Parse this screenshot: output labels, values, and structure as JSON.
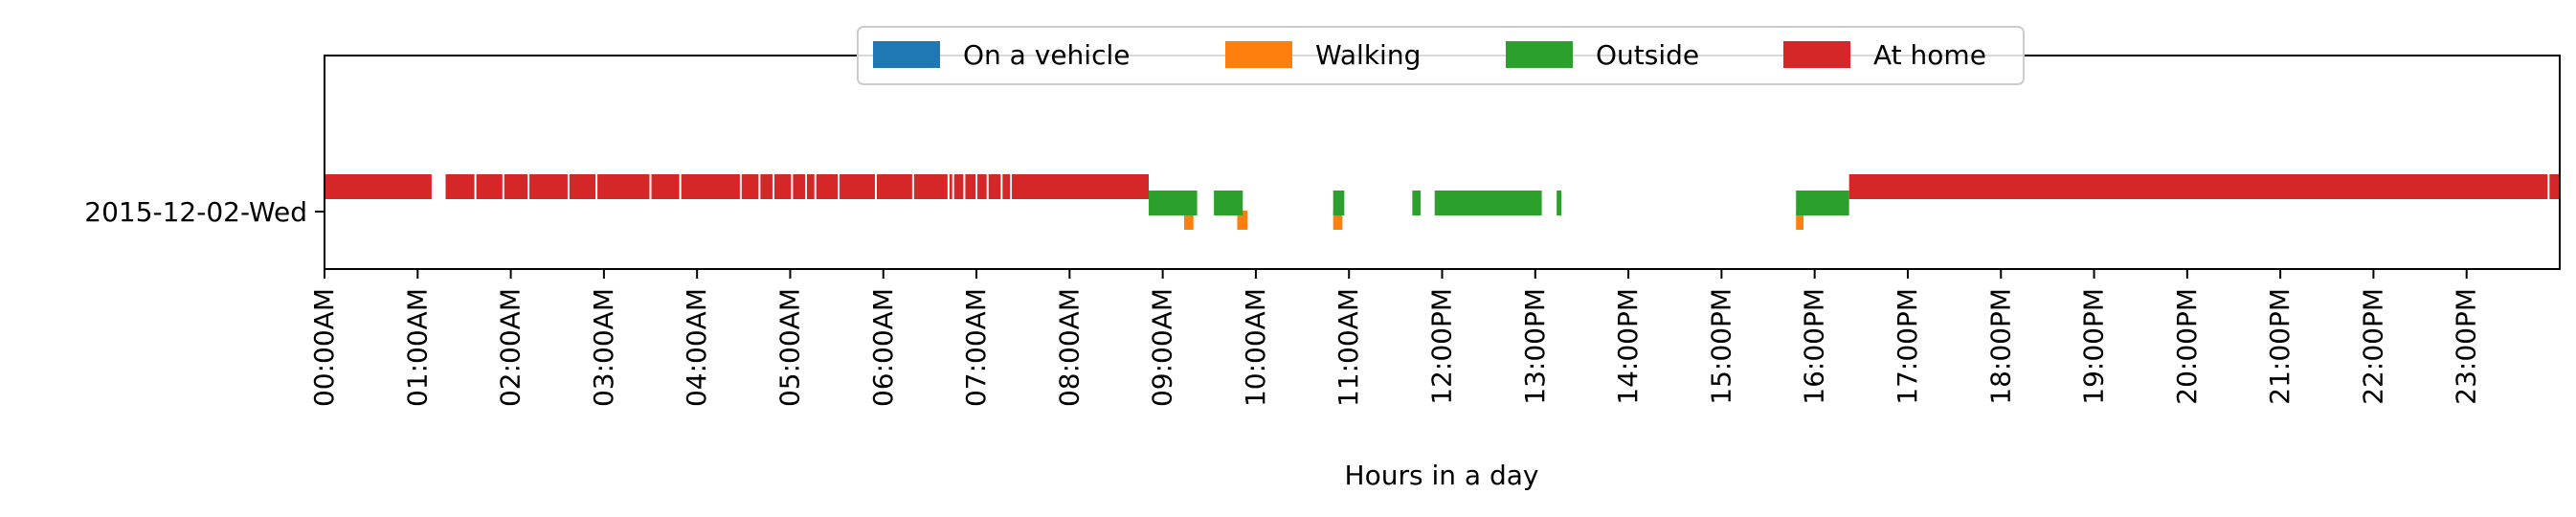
{
  "chart_data": {
    "type": "timeline",
    "title": "",
    "xlabel": "Hours in a day",
    "ylabel": "",
    "xlim": [
      0,
      24
    ],
    "x_ticks": [
      0,
      1,
      2,
      3,
      4,
      5,
      6,
      7,
      8,
      9,
      10,
      11,
      12,
      13,
      14,
      15,
      16,
      17,
      18,
      19,
      20,
      21,
      22,
      23
    ],
    "x_tick_labels": [
      "00:00AM",
      "01:00AM",
      "02:00AM",
      "03:00AM",
      "04:00AM",
      "05:00AM",
      "06:00AM",
      "07:00AM",
      "08:00AM",
      "09:00AM",
      "10:00AM",
      "11:00AM",
      "12:00PM",
      "13:00PM",
      "14:00PM",
      "15:00PM",
      "16:00PM",
      "17:00PM",
      "18:00PM",
      "19:00PM",
      "20:00PM",
      "21:00PM",
      "22:00PM",
      "23:00PM"
    ],
    "categories": [
      "2015-12-02-Wed"
    ],
    "legend_position": "top-center",
    "grid": false,
    "series": [
      {
        "name": "On a vehicle",
        "color": "#1f77b4",
        "lane": 0,
        "intervals": []
      },
      {
        "name": "Walking",
        "color": "#ff7f0e",
        "lane": 1,
        "intervals": [
          [
            9.23,
            9.33
          ],
          [
            9.8,
            9.91
          ],
          [
            10.83,
            10.93
          ],
          [
            15.8,
            15.88
          ]
        ]
      },
      {
        "name": "Outside",
        "color": "#2ca02c",
        "lane": 2,
        "intervals": [
          [
            8.85,
            9.37
          ],
          [
            9.55,
            9.86
          ],
          [
            10.83,
            10.95
          ],
          [
            11.68,
            11.77
          ],
          [
            11.92,
            13.07
          ],
          [
            13.23,
            13.28
          ],
          [
            15.8,
            16.37
          ]
        ]
      },
      {
        "name": "At home",
        "color": "#d62728",
        "lane": 3,
        "intervals": [
          [
            0.0,
            1.15
          ],
          [
            1.3,
            7.38
          ],
          [
            7.38,
            8.85
          ],
          [
            16.37,
            24.0
          ]
        ]
      }
    ],
    "home_gap_marks": [
      1.18,
      1.62,
      1.92,
      2.19,
      2.62,
      2.92,
      3.5,
      3.82,
      4.47,
      4.67,
      4.82,
      5.02,
      5.17,
      5.27,
      5.52,
      5.92,
      6.32,
      6.7,
      6.75,
      6.87,
      7.0,
      7.12,
      7.27,
      7.37,
      23.88
    ]
  }
}
